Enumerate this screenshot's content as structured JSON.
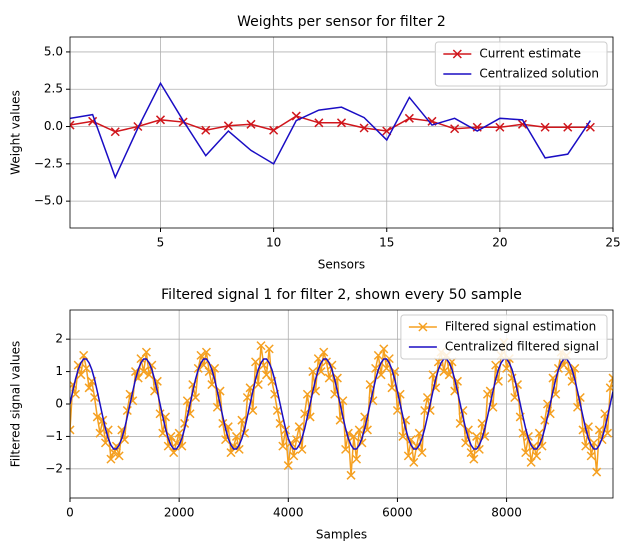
{
  "chart_data": [
    {
      "type": "line",
      "title": "Weights per sensor for filter 2",
      "xlabel": "Sensors",
      "ylabel": "Weight values",
      "x": [
        1,
        2,
        3,
        4,
        5,
        6,
        7,
        8,
        9,
        10,
        11,
        12,
        13,
        14,
        15,
        16,
        17,
        18,
        19,
        20,
        21,
        22,
        23,
        24
      ],
      "series": [
        {
          "name": "Current estimate",
          "color": "#d0161c",
          "marker": "x",
          "values": [
            0.1,
            0.35,
            -0.35,
            0.0,
            0.45,
            0.3,
            -0.25,
            0.05,
            0.15,
            -0.25,
            0.7,
            0.25,
            0.25,
            -0.1,
            -0.3,
            0.55,
            0.35,
            -0.15,
            -0.05,
            -0.05,
            0.15,
            -0.05,
            -0.05,
            -0.05
          ]
        },
        {
          "name": "Centralized solution",
          "color": "#1a0dc4",
          "marker": "none",
          "values": [
            0.55,
            0.8,
            -3.4,
            -0.1,
            2.9,
            0.4,
            -1.95,
            -0.3,
            -1.6,
            -2.5,
            0.4,
            1.1,
            1.3,
            0.6,
            -0.9,
            1.95,
            0.1,
            0.55,
            -0.3,
            0.55,
            0.45,
            -2.1,
            -1.85,
            0.4
          ]
        }
      ],
      "xlim": [
        1,
        25
      ],
      "xticks": [
        5,
        10,
        15,
        20,
        25
      ],
      "ylim": [
        -6.8,
        6.0
      ],
      "yticks": [
        {
          "value": -5,
          "label": "−5.0"
        },
        {
          "value": -2.5,
          "label": "−2.5"
        },
        {
          "value": 0,
          "label": "0.0"
        },
        {
          "value": 2.5,
          "label": "2.5"
        },
        {
          "value": 5,
          "label": "5.0"
        }
      ],
      "grid": true,
      "legend": "upper right"
    },
    {
      "type": "line",
      "title": "Filtered signal 1 for filter 2, shown every 50 sample",
      "xlabel": "Samples",
      "ylabel": "Filtered signal values",
      "x": [
        0,
        50,
        100,
        150,
        200,
        250,
        300,
        350,
        400,
        450,
        500,
        550,
        600,
        650,
        700,
        750,
        800,
        850,
        900,
        950,
        1000,
        1050,
        1100,
        1150,
        1200,
        1250,
        1300,
        1350,
        1400,
        1450,
        1500,
        1550,
        1600,
        1650,
        1700,
        1750,
        1800,
        1850,
        1900,
        1950,
        2000,
        2050,
        2100,
        2150,
        2200,
        2250,
        2300,
        2350,
        2400,
        2450,
        2500,
        2550,
        2600,
        2650,
        2700,
        2750,
        2800,
        2850,
        2900,
        2950,
        3000,
        3050,
        3100,
        3150,
        3200,
        3250,
        3300,
        3350,
        3400,
        3450,
        3500,
        3550,
        3600,
        3650,
        3700,
        3750,
        3800,
        3850,
        3900,
        3950,
        4000,
        4050,
        4100,
        4150,
        4200,
        4250,
        4300,
        4350,
        4400,
        4450,
        4500,
        4550,
        4600,
        4650,
        4700,
        4750,
        4800,
        4850,
        4900,
        4950,
        5000,
        5050,
        5100,
        5150,
        5200,
        5250,
        5300,
        5350,
        5400,
        5450,
        5500,
        5550,
        5600,
        5650,
        5700,
        5750,
        5800,
        5850,
        5900,
        5950,
        6000,
        6050,
        6100,
        6150,
        6200,
        6250,
        6300,
        6350,
        6400,
        6450,
        6500,
        6550,
        6600,
        6650,
        6700,
        6750,
        6800,
        6850,
        6900,
        6950,
        7000,
        7050,
        7100,
        7150,
        7200,
        7250,
        7300,
        7350,
        7400,
        7450,
        7500,
        7550,
        7600,
        7650,
        7700,
        7750,
        7800,
        7850,
        7900,
        7950,
        8000,
        8050,
        8100,
        8150,
        8200,
        8250,
        8300,
        8350,
        8400,
        8450,
        8500,
        8550,
        8600,
        8650,
        8700,
        8750,
        8800,
        8850,
        8900,
        8950,
        9000,
        9050,
        9100,
        9150,
        9200,
        9250,
        9300,
        9350,
        9400,
        9450,
        9500,
        9550,
        9600,
        9650,
        9700,
        9750,
        9800,
        9850,
        9900,
        9950
      ],
      "series": [
        {
          "name": "Filtered signal estimation",
          "color": "#f5a020",
          "marker": "x",
          "values": [
            -0.8,
            0.6,
            0.3,
            1.2,
            0.9,
            1.5,
            1.1,
            0.5,
            0.7,
            0.2,
            -0.4,
            -0.9,
            -0.5,
            -1.2,
            -0.8,
            -1.7,
            -1.5,
            -1.3,
            -1.6,
            -0.8,
            -1.1,
            -0.2,
            0.3,
            0.1,
            1.0,
            0.8,
            1.4,
            1.0,
            1.6,
            0.9,
            1.2,
            0.4,
            0.7,
            -0.3,
            -0.9,
            -0.4,
            -1.3,
            -1.0,
            -1.5,
            -1.2,
            -0.9,
            -1.3,
            -0.6,
            0.1,
            -0.3,
            0.6,
            0.2,
            1.1,
            1.5,
            1.2,
            1.6,
            1.0,
            0.6,
            1.1,
            -0.1,
            0.4,
            -0.6,
            -1.1,
            -0.7,
            -1.5,
            -1.3,
            -1.0,
            -1.4,
            -0.5,
            -0.9,
            0.2,
            0.5,
            -0.2,
            1.3,
            0.6,
            1.8,
            1.2,
            0.9,
            1.7,
            0.7,
            0.3,
            -0.2,
            -0.6,
            -1.3,
            -0.8,
            -1.9,
            -1.2,
            -1.6,
            -1.1,
            -0.7,
            -1.4,
            -0.3,
            0.3,
            -0.4,
            1.0,
            0.4,
            1.4,
            1.0,
            1.6,
            1.3,
            0.8,
            1.2,
            0.3,
            0.8,
            -0.5,
            0.1,
            -1.4,
            -0.9,
            -2.2,
            -1.0,
            -1.7,
            -0.8,
            -1.2,
            -0.4,
            -0.8,
            0.6,
            0.1,
            1.1,
            1.5,
            0.9,
            1.7,
            1.1,
            1.4,
            0.5,
            1.0,
            -0.2,
            0.3,
            -1.0,
            -0.5,
            -1.6,
            -1.1,
            -1.8,
            -1.3,
            -0.9,
            -1.5,
            -0.2,
            0.2,
            -0.2,
            0.9,
            0.5,
            1.3,
            1.6,
            1.0,
            1.5,
            0.9,
            1.3,
            0.4,
            0.7,
            -0.6,
            -0.2,
            -1.2,
            -0.8,
            -1.5,
            -1.7,
            -1.0,
            -1.4,
            -0.6,
            -1.0,
            0.3,
            0.4,
            -0.1,
            1.2,
            0.7,
            1.5,
            1.9,
            1.1,
            1.4,
            0.8,
            0.2,
            0.6,
            -0.4,
            -0.9,
            -1.5,
            -1.0,
            -1.8,
            -1.3,
            -1.6,
            -0.9,
            -1.3,
            -0.5,
            0.0,
            -0.3,
            0.8,
            0.3,
            1.1,
            1.6,
            1.2,
            1.5,
            1.0,
            0.7,
            1.1,
            -0.1,
            0.2,
            -0.8,
            -1.3,
            -0.7,
            -1.6,
            -1.2,
            -2.1,
            -0.8,
            -1.1,
            -0.3,
            -0.9,
            0.5,
            0.8
          ]
        },
        {
          "name": "Centralized filtered signal",
          "color": "#1a0dc4",
          "marker": "none",
          "values": [
            0,
            0.39,
            0.76,
            1.06,
            1.27,
            1.39,
            1.39,
            1.27,
            1.06,
            0.76,
            0.39,
            0,
            -0.39,
            -0.76,
            -1.06,
            -1.27,
            -1.39,
            -1.39,
            -1.27,
            -1.06,
            -0.76,
            -0.39,
            0,
            0.39,
            0.76,
            1.06,
            1.27,
            1.39,
            1.39,
            1.27,
            1.06,
            0.76,
            0.39,
            0,
            -0.39,
            -0.76,
            -1.06,
            -1.27,
            -1.39,
            -1.39,
            -1.27,
            -1.06,
            -0.76,
            -0.39,
            0,
            0.39,
            0.76,
            1.06,
            1.27,
            1.39,
            1.39,
            1.27,
            1.06,
            0.76,
            0.39,
            0,
            -0.39,
            -0.76,
            -1.06,
            -1.27,
            -1.39,
            -1.39,
            -1.27,
            -1.06,
            -0.76,
            -0.39,
            0,
            0.39,
            0.76,
            1.06,
            1.27,
            1.39,
            1.39,
            1.27,
            1.06,
            0.76,
            0.39,
            0,
            -0.39,
            -0.76,
            -1.06,
            -1.27,
            -1.39,
            -1.39,
            -1.27,
            -1.06,
            -0.76,
            -0.39,
            0,
            0.39,
            0.76,
            1.06,
            1.27,
            1.39,
            1.39,
            1.27,
            1.06,
            0.76,
            0.39,
            0,
            -0.39,
            -0.76,
            -1.06,
            -1.27,
            -1.39,
            -1.39,
            -1.27,
            -1.06,
            -0.76,
            -0.39,
            0,
            0.39,
            0.76,
            1.06,
            1.27,
            1.39,
            1.39,
            1.27,
            1.06,
            0.76,
            0.39,
            0,
            -0.39,
            -0.76,
            -1.06,
            -1.27,
            -1.39,
            -1.39,
            -1.27,
            -1.06,
            -0.76,
            -0.39,
            0,
            0.39,
            0.76,
            1.06,
            1.27,
            1.39,
            1.39,
            1.27,
            1.06,
            0.76,
            0.39,
            0,
            -0.39,
            -0.76,
            -1.06,
            -1.27,
            -1.39,
            -1.39,
            -1.27,
            -1.06,
            -0.76,
            -0.39,
            0,
            0.39,
            0.76,
            1.06,
            1.27,
            1.39,
            1.39,
            1.27,
            1.06,
            0.76,
            0.39,
            0,
            -0.39,
            -0.76,
            -1.06,
            -1.27,
            -1.39,
            -1.39,
            -1.27,
            -1.06,
            -0.76,
            -0.39,
            0,
            0.39,
            0.76,
            1.06,
            1.27,
            1.39,
            1.39,
            1.27,
            1.06,
            0.76,
            0.39,
            0,
            -0.39,
            -0.76,
            -1.06,
            -1.27,
            -1.39,
            -1.39,
            -1.27,
            -1.06,
            -0.76,
            -0.39,
            0,
            0.39
          ]
        }
      ],
      "xlim": [
        0,
        9950
      ],
      "xticks": [
        0,
        2000,
        4000,
        6000,
        8000
      ],
      "ylim": [
        -2.9,
        2.9
      ],
      "yticks": [
        {
          "value": -2,
          "label": "−2"
        },
        {
          "value": -1,
          "label": "−1"
        },
        0,
        1,
        2
      ],
      "grid": true,
      "legend": "upper right"
    }
  ]
}
